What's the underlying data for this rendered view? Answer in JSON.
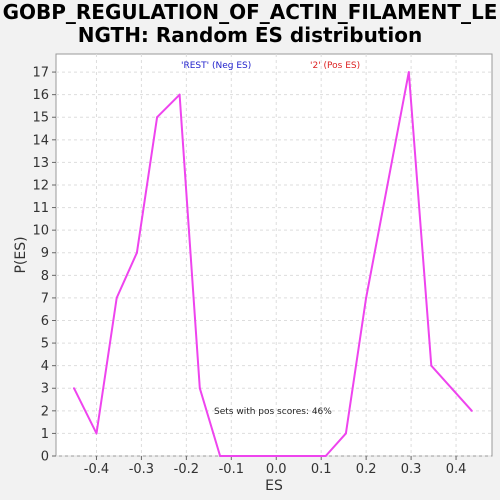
{
  "chart_data": {
    "type": "line",
    "title_line1": "GOBP_REGULATION_OF_ACTIN_FILAMENT_LE",
    "title_line2": "NGTH: Random ES distribution",
    "xlabel": "ES",
    "ylabel": "P(ES)",
    "xlim": [
      -0.49,
      0.48
    ],
    "ylim": [
      0,
      17.8
    ],
    "xticks": [
      -0.4,
      -0.3,
      -0.2,
      -0.1,
      0.0,
      0.1,
      0.2,
      0.3,
      0.4
    ],
    "xtick_labels": [
      "-0.4",
      "-0.3",
      "-0.2",
      "-0.1",
      "0.0",
      "0.1",
      "0.2",
      "0.3",
      "0.4"
    ],
    "yticks": [
      0,
      1,
      2,
      3,
      4,
      5,
      6,
      7,
      8,
      9,
      10,
      11,
      12,
      13,
      14,
      15,
      16,
      17
    ],
    "grid": true,
    "legend": [
      {
        "label": "'REST' (Neg ES)",
        "color": "#2222cc"
      },
      {
        "label": "'2' (Pos ES)",
        "color": "#dd2222"
      }
    ],
    "annotation": "Sets with pos scores: 46%",
    "series": [
      {
        "color": "#ee44ee",
        "x": [
          -0.45,
          -0.4,
          -0.355,
          -0.31,
          -0.265,
          -0.215,
          -0.17,
          -0.125,
          -0.08,
          0.0,
          0.11,
          0.155,
          0.2,
          0.295,
          0.345,
          0.39,
          0.435
        ],
        "y": [
          3,
          1,
          7,
          9,
          15,
          16,
          3,
          0,
          0,
          0,
          0,
          1,
          7,
          17,
          4,
          3,
          2
        ]
      }
    ]
  }
}
